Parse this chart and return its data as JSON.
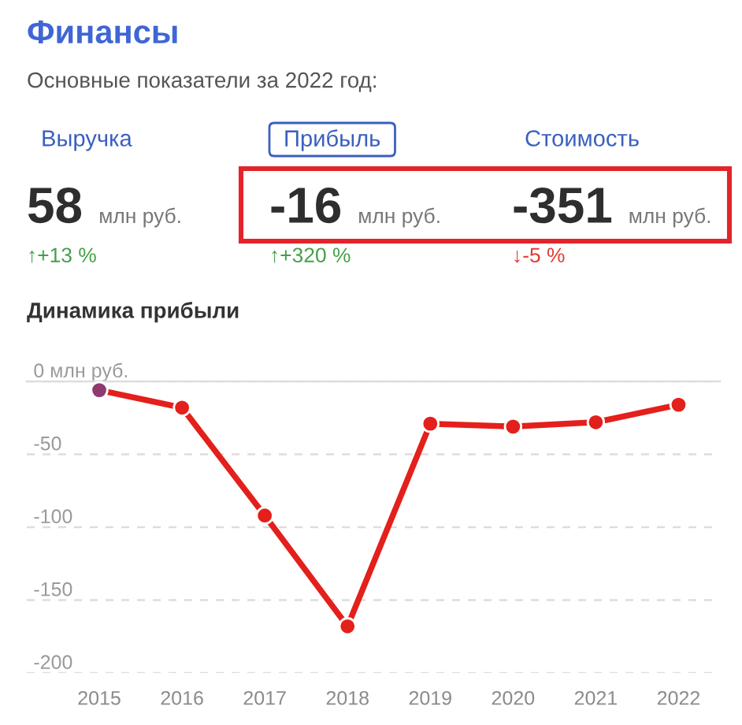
{
  "chart_data": [
    {
      "type": "other",
      "title": "Финансы",
      "subtitle": "Основные показатели за 2022 год:",
      "annotations": [
        "Выручка",
        "Прибыль",
        "Стоимость",
        "58",
        "-16",
        "-351",
        "млн руб.",
        "млн руб.",
        "млн руб.",
        "↑+13 %",
        "↑+320 %",
        "↓-5 %"
      ]
    },
    {
      "type": "line",
      "title": "Динамика прибыли",
      "categories": [
        "2015",
        "2016",
        "2017",
        "2018",
        "2019",
        "2020",
        "2021",
        "2022"
      ],
      "series": [
        {
          "color": "#e3201b",
          "colors": [
            "#8e3a6e",
            "#e3201b",
            "#e3201b",
            "#e3201b",
            "#e3201b",
            "#e3201b",
            "#e3201b",
            "#e3201b"
          ],
          "values": [
            -6,
            -18,
            -92,
            -168,
            -29,
            -31,
            -28,
            -16
          ]
        }
      ],
      "ylim": [
        -200,
        0
      ],
      "yticks": [
        {
          "value": 0,
          "label": "0 млн руб."
        },
        -50,
        -100,
        -150,
        -200
      ],
      "grid": "y",
      "marker": "circle",
      "line_style": "solid"
    }
  ]
}
